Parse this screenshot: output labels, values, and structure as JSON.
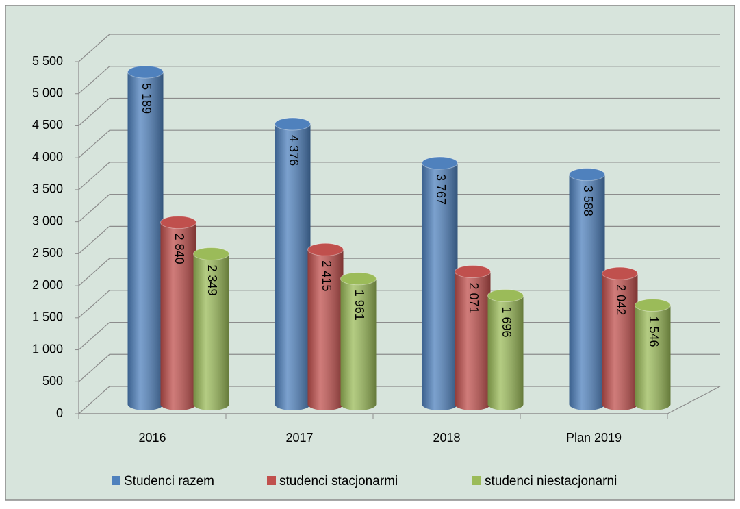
{
  "chart_data": {
    "type": "bar3d",
    "categories": [
      "2016",
      "2017",
      "2018",
      "Plan 2019"
    ],
    "series": [
      {
        "name": "Studenci razem",
        "color": "#4f81bd",
        "values": [
          5189,
          4376,
          3767,
          3588
        ],
        "value_labels": [
          "5 189",
          "4 376",
          "3 767",
          "3 588"
        ]
      },
      {
        "name": "studenci stacjonarmi",
        "color": "#c0504d",
        "values": [
          2840,
          2415,
          2071,
          2042
        ],
        "value_labels": [
          "2 840",
          "2 415",
          "2 071",
          "2 042"
        ]
      },
      {
        "name": "studenci niestacjonarni",
        "color": "#9bbb59",
        "values": [
          2349,
          1961,
          1696,
          1546
        ],
        "value_labels": [
          "2 349",
          "1 961",
          "1 696",
          "1 546"
        ]
      }
    ],
    "ylim": [
      0,
      5500
    ],
    "yticks": [
      0,
      500,
      {
        "value": 1000,
        "label": "1 000"
      },
      {
        "value": 1500,
        "label": "1 500"
      },
      {
        "value": 2000,
        "label": "2 000"
      },
      {
        "value": 2500,
        "label": "2 500"
      },
      {
        "value": 3000,
        "label": "3 000"
      },
      {
        "value": 3500,
        "label": "3 500"
      },
      {
        "value": 4000,
        "label": "4 000"
      },
      {
        "value": 4500,
        "label": "4 500"
      },
      {
        "value": 5000,
        "label": "5 000"
      },
      {
        "value": 5500,
        "label": "5 500"
      }
    ],
    "grid": true,
    "legend": "bottom"
  }
}
